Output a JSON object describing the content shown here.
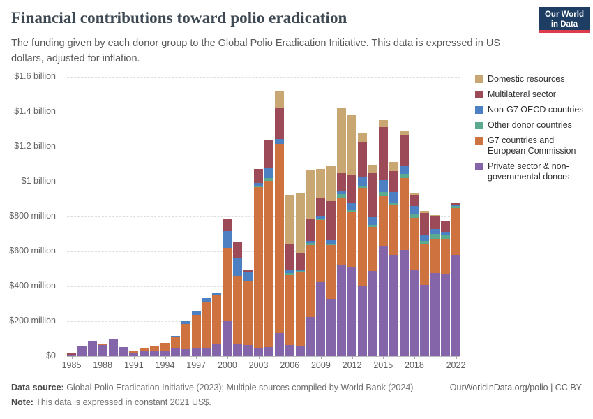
{
  "header": {
    "title": "Financial contributions toward polio eradication",
    "subtitle": "The funding given by each donor group to the Global Polio Eradication Initiative. This data is expressed in US dollars, adjusted for inflation.",
    "logo": {
      "line1": "Our World",
      "line2": "in Data"
    }
  },
  "chart_data": {
    "type": "bar",
    "stacked": true,
    "unit": "US$ million (constant 2021 US$)",
    "ylim": [
      0,
      1600
    ],
    "grid": "dashed-horizontal",
    "legend_position": "right",
    "ytick_labels": [
      "$1.6 billion",
      "$1.4 billion",
      "$1.2 billion",
      "$1 billion",
      "$800 million",
      "$600 million",
      "$400 million",
      "$200 million",
      "$0"
    ],
    "x_tick_years": [
      1985,
      1988,
      1991,
      1994,
      1997,
      2000,
      2003,
      2006,
      2009,
      2012,
      2015,
      2018,
      2022
    ],
    "years": [
      1985,
      1986,
      1987,
      1988,
      1989,
      1990,
      1991,
      1992,
      1993,
      1994,
      1995,
      1996,
      1997,
      1998,
      1999,
      2000,
      2001,
      2002,
      2003,
      2004,
      2005,
      2006,
      2007,
      2008,
      2009,
      2010,
      2011,
      2012,
      2013,
      2014,
      2015,
      2016,
      2017,
      2018,
      2019,
      2020,
      2021,
      2022
    ],
    "series": [
      {
        "name": "Private sector & non-governmental donors",
        "color": "#8465A9",
        "values": [
          10,
          55,
          85,
          64,
          97,
          52,
          22,
          30,
          27,
          33,
          43,
          42,
          48,
          48,
          73,
          200,
          67,
          64,
          47,
          53,
          133,
          63,
          60,
          225,
          425,
          327,
          523,
          513,
          403,
          490,
          633,
          580,
          607,
          493,
          407,
          477,
          467,
          580
        ]
      },
      {
        "name": "G7 countries and European Commission",
        "color": "#CE7340",
        "values": [
          0,
          0,
          0,
          7,
          0,
          0,
          11,
          16,
          28,
          43,
          65,
          142,
          187,
          265,
          280,
          420,
          393,
          370,
          920,
          953,
          1085,
          400,
          420,
          410,
          355,
          310,
          386,
          315,
          560,
          250,
          287,
          287,
          413,
          300,
          233,
          196,
          206,
          267
        ]
      },
      {
        "name": "Other donor countries",
        "color": "#5BA98F",
        "values": [
          0,
          0,
          0,
          0,
          0,
          0,
          0,
          0,
          0,
          0,
          0,
          0,
          0,
          0,
          0,
          0,
          0,
          0,
          8,
          13,
          0,
          13,
          8,
          15,
          8,
          8,
          20,
          13,
          15,
          13,
          20,
          13,
          23,
          20,
          20,
          27,
          20,
          13
        ]
      },
      {
        "name": "Non-G7 OECD countries",
        "color": "#4C80C2",
        "values": [
          0,
          0,
          0,
          0,
          0,
          0,
          0,
          0,
          0,
          0,
          8,
          16,
          25,
          20,
          7,
          97,
          105,
          45,
          16,
          60,
          27,
          20,
          8,
          10,
          15,
          20,
          16,
          40,
          45,
          44,
          67,
          60,
          44,
          47,
          33,
          27,
          20,
          5
        ]
      },
      {
        "name": "Multilateral sector",
        "color": "#9C4A58",
        "values": [
          8,
          0,
          0,
          0,
          0,
          0,
          0,
          0,
          0,
          0,
          0,
          0,
          0,
          0,
          0,
          73,
          90,
          17,
          80,
          160,
          180,
          145,
          95,
          130,
          105,
          225,
          104,
          160,
          200,
          250,
          306,
          120,
          180,
          63,
          127,
          73,
          60,
          15
        ]
      },
      {
        "name": "Domestic resources",
        "color": "#C8A772",
        "values": [
          0,
          0,
          0,
          0,
          0,
          0,
          0,
          0,
          0,
          0,
          0,
          0,
          0,
          0,
          0,
          0,
          0,
          0,
          0,
          0,
          90,
          285,
          340,
          280,
          165,
          200,
          371,
          339,
          55,
          49,
          40,
          53,
          20,
          10,
          13,
          10,
          0,
          0
        ]
      }
    ],
    "legend": [
      {
        "label": "Domestic resources",
        "color": "#C8A772"
      },
      {
        "label": "Multilateral sector",
        "color": "#9C4A58"
      },
      {
        "label": "Non-G7 OECD countries",
        "color": "#4C80C2"
      },
      {
        "label": "Other donor countries",
        "color": "#5BA98F"
      },
      {
        "label": "G7 countries and European Commission",
        "color": "#CE7340"
      },
      {
        "label": "Private sector & non-governmental donors",
        "color": "#8465A9"
      }
    ]
  },
  "footer": {
    "data_source_label": "Data source:",
    "data_source_text": " Global Polio Eradication Initiative (2023); Multiple sources compiled by World Bank (2024)",
    "note_label": "Note:",
    "note_text": " This data is expressed in constant 2021 US$.",
    "credit": "OurWorldinData.org/polio | CC BY"
  }
}
